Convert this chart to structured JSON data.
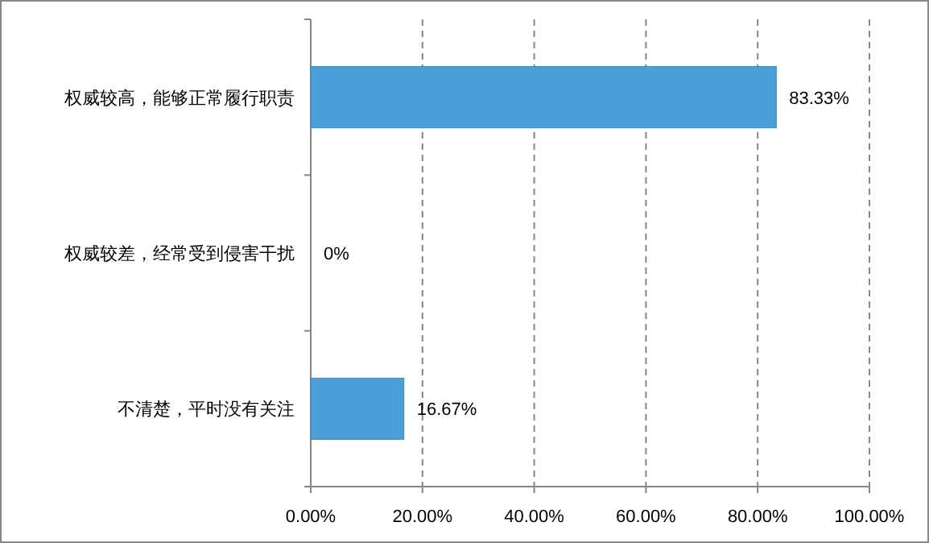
{
  "chart_data": {
    "type": "bar",
    "orientation": "horizontal",
    "categories": [
      "权威较高，能够正常履行职责",
      "权威较差，经常受到侵害干扰",
      "不清楚，平时没有关注"
    ],
    "values": [
      83.33,
      0,
      16.67
    ],
    "value_labels": [
      "83.33%",
      "0%",
      "16.67%"
    ],
    "color": "#4a9fd9",
    "xlim": [
      0,
      100
    ],
    "xticks": [
      {
        "value": 0,
        "label": "0.00%"
      },
      {
        "value": 20,
        "label": "20.00%"
      },
      {
        "value": 40,
        "label": "40.00%"
      },
      {
        "value": 60,
        "label": "60.00%"
      },
      {
        "value": 80,
        "label": "80.00%"
      },
      {
        "value": 100,
        "label": "100.00%"
      }
    ],
    "grid": "x"
  }
}
